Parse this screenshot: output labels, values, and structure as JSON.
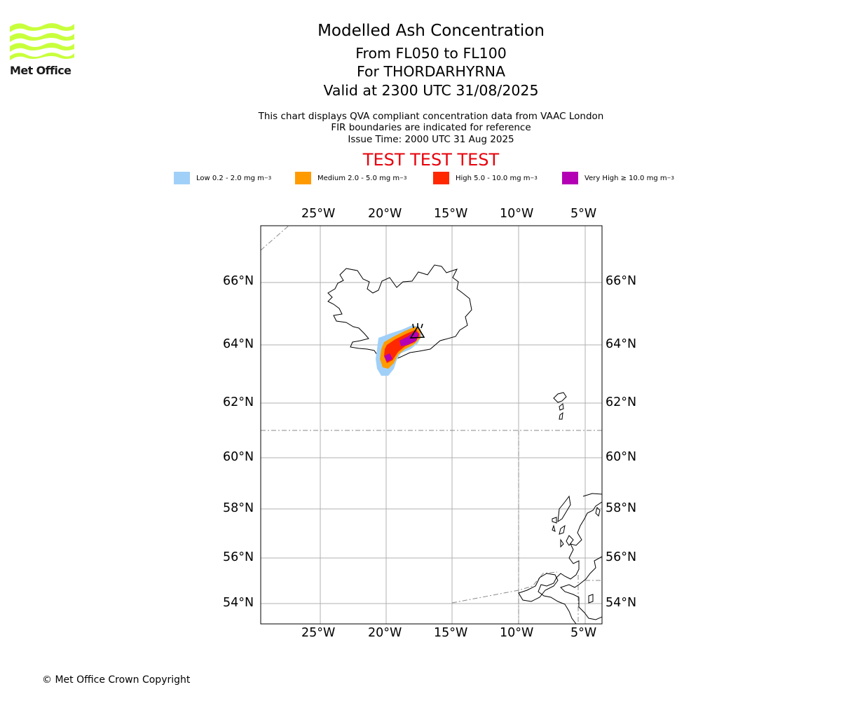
{
  "branding": {
    "logo_text": "Met Office",
    "logo_color": "#c8ff3c"
  },
  "header": {
    "title": "Modelled Ash Concentration",
    "subtitle_levels": "From FL050 to FL100",
    "subtitle_volcano": "For THORDARHYRNA",
    "subtitle_valid": "Valid at 2300 UTC 31/08/2025",
    "info_line1": "This chart displays QVA compliant concentration data from VAAC London",
    "info_line2": "FIR boundaries are indicated for reference",
    "info_line3": "Issue Time: 2000 UTC 31 Aug 2025",
    "test_banner": "TEST TEST TEST"
  },
  "legend": [
    {
      "label": "Low 0.2 - 2.0 mg m",
      "unit_sup": "−3",
      "color": "#a0d0f8"
    },
    {
      "label": "Medium 2.0 - 5.0 mg m",
      "unit_sup": "−3",
      "color": "#ff9b00"
    },
    {
      "label": "High 5.0 - 10.0 mg m",
      "unit_sup": "−3",
      "color": "#ff2800"
    },
    {
      "label": "Very High ≥ 10.0 mg m",
      "unit_sup": "−3",
      "color": "#b400b4"
    }
  ],
  "map": {
    "longitude_labels": [
      "25°W",
      "20°W",
      "15°W",
      "10°W",
      "5°W"
    ],
    "latitude_labels": [
      "66°N",
      "64°N",
      "62°N",
      "60°N",
      "58°N",
      "56°N",
      "54°N"
    ],
    "volcano_icon": "volcano-triangle-icon",
    "grid": true,
    "fir_boundaries": true
  },
  "footer": {
    "copyright": "© Met Office Crown Copyright"
  }
}
